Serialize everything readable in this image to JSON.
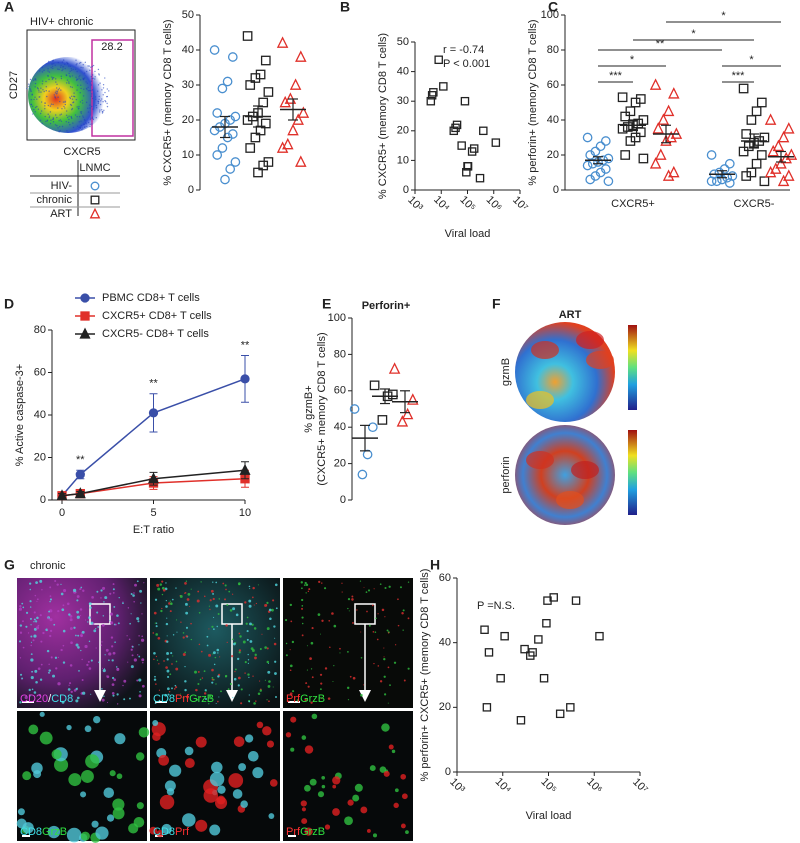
{
  "panel_labels": [
    "A",
    "B",
    "C",
    "D",
    "E",
    "F",
    "G",
    "H"
  ],
  "flow": {
    "title": "HIV+ chronic",
    "ylabel": "CD27",
    "xlabel": "CXCR5",
    "gate": "28.2"
  },
  "legend_table": {
    "header": "LNMC"
  },
  "heatmaps": {
    "title": "ART",
    "labels": [
      "gzmB",
      "perforin"
    ]
  },
  "micrographs": {
    "title": "chronic",
    "captions": [
      [
        {
          "text": "CD20",
          "color": "#e040e0"
        },
        {
          "text": "/",
          "color": "#ffffff"
        },
        {
          "text": "CD8",
          "color": "#40e0e8"
        }
      ],
      [
        {
          "text": "CD8",
          "color": "#40e0e8"
        },
        {
          "text": "Prf",
          "color": "#ff3030"
        },
        {
          "text": "GrzB",
          "color": "#30e040"
        }
      ],
      [
        {
          "text": "Prf",
          "color": "#ff3030"
        },
        {
          "text": "GrzB",
          "color": "#30e040"
        }
      ],
      [
        {
          "text": "CD8",
          "color": "#40e0e8"
        },
        {
          "text": "GrzB",
          "color": "#30e040"
        }
      ],
      [
        {
          "text": "CD8",
          "color": "#40e0e8"
        },
        {
          "text": "Prf",
          "color": "#ff3030"
        }
      ],
      [
        {
          "text": "Prf",
          "color": "#ff3030"
        },
        {
          "text": "GrzB",
          "color": "#30e040"
        }
      ]
    ]
  },
  "chart_data": [
    {
      "type": "dot",
      "ylabel": "% CXCR5+ (memory CD8 T cells)",
      "ylim": [
        0,
        50
      ],
      "yticks": [
        0,
        10,
        20,
        30,
        40,
        50
      ],
      "series": [
        {
          "name": "HIV-",
          "color": "#4a8fcf",
          "marker": "circle",
          "values": [
            40,
            38,
            31,
            29,
            22,
            21,
            20,
            19,
            18,
            17,
            16,
            15,
            12,
            10,
            8,
            6,
            3
          ],
          "mean": 18,
          "sem": 3
        },
        {
          "name": "chronic",
          "color": "#222222",
          "marker": "square",
          "values": [
            44,
            37,
            33,
            32,
            30,
            28,
            25,
            22,
            21,
            20,
            19,
            17,
            15,
            12,
            8,
            7,
            5
          ],
          "mean": 21,
          "sem": 3
        },
        {
          "name": "ART",
          "color": "#e0302a",
          "marker": "triangle",
          "values": [
            42,
            38,
            30,
            26,
            25,
            22,
            20,
            17,
            13,
            12,
            8
          ],
          "mean": 23,
          "sem": 3
        }
      ]
    },
    {
      "type": "scatter",
      "xlabel": "Viral load",
      "ylabel": "% CXCR5+ (memory CD8 T cells)",
      "xscale": "log",
      "xlim": [
        1000,
        10000000
      ],
      "xticks": [
        {
          "value": 1000,
          "label": "10³"
        },
        {
          "value": 10000,
          "label": "10⁴"
        },
        {
          "value": 100000,
          "label": "10⁵"
        },
        {
          "value": 1000000,
          "label": "10⁶"
        },
        {
          "value": 10000000,
          "label": "10⁷"
        }
      ],
      "ylim": [
        0,
        50
      ],
      "yticks": [
        0,
        10,
        20,
        30,
        40,
        50
      ],
      "annotations": [
        "r = -0.74",
        "P < 0.001"
      ],
      "color": "#222222",
      "marker": "square",
      "x": [
        4000,
        4500,
        5000,
        8000,
        12000,
        30000,
        35000,
        40000,
        60000,
        80000,
        90000,
        100000,
        105000,
        150000,
        180000,
        300000,
        400000,
        1200000
      ],
      "values": [
        30,
        32,
        33,
        44,
        35,
        20,
        21,
        22,
        15,
        30,
        6,
        8,
        8,
        13,
        14,
        4,
        20,
        16
      ]
    },
    {
      "type": "grouped-dot",
      "ylabel": "% perforin+ (memory CD8 T cells)",
      "ylim": [
        0,
        100
      ],
      "yticks": [
        0,
        20,
        40,
        60,
        80,
        100
      ],
      "categories": [
        "CXCR5+",
        "CXCR5-"
      ],
      "annotations": [
        "*",
        "*",
        "**",
        "*",
        "***",
        "***",
        "*"
      ],
      "series": [
        {
          "name": "HIV-",
          "color": "#4a8fcf",
          "marker": "circle",
          "values": [
            [
              30,
              28,
              25,
              22,
              20,
              18,
              17,
              16,
              15,
              14,
              12,
              10,
              8,
              6,
              5
            ],
            [
              20,
              15,
              12,
              10,
              9,
              8,
              7,
              6,
              5,
              5,
              4
            ]
          ],
          "means": [
            17,
            9
          ],
          "sem": [
            2,
            2
          ]
        },
        {
          "name": "chronic",
          "color": "#222222",
          "marker": "square",
          "values": [
            [
              53,
              52,
              50,
              45,
              42,
              40,
              38,
              37,
              36,
              35,
              33,
              30,
              28,
              20,
              18
            ],
            [
              58,
              50,
              45,
              40,
              32,
              30,
              28,
              27,
              25,
              22,
              20,
              15,
              10,
              8,
              5
            ]
          ],
          "means": [
            37,
            28
          ],
          "sem": [
            3,
            4
          ]
        },
        {
          "name": "ART",
          "color": "#e0302a",
          "marker": "triangle",
          "values": [
            [
              60,
              55,
              45,
              40,
              35,
              32,
              30,
              28,
              20,
              15,
              10,
              8
            ],
            [
              40,
              35,
              30,
              25,
              22,
              20,
              18,
              15,
              12,
              10,
              8,
              5
            ]
          ],
          "means": [
            32,
            19
          ],
          "sem": [
            5,
            3
          ]
        }
      ]
    },
    {
      "type": "line",
      "xlabel": "E:T ratio",
      "ylabel": "% Active caspase-3+",
      "xlim": [
        0,
        10
      ],
      "xticks": [
        0,
        5,
        10
      ],
      "ylim": [
        0,
        80
      ],
      "yticks": [
        0,
        20,
        40,
        60,
        80
      ],
      "x": [
        0,
        1,
        5,
        10
      ],
      "filled": true,
      "annotations": [
        "**",
        "**",
        "**"
      ],
      "series": [
        {
          "name": "PBMC CD8+ T cells",
          "color": "#3a4fa8",
          "marker": "circle",
          "values": [
            2,
            12,
            41,
            57
          ],
          "errors": [
            1,
            2,
            9,
            11
          ]
        },
        {
          "name": "CXCR5+ CD8+ T cells",
          "color": "#e0302a",
          "marker": "square",
          "values": [
            2,
            3,
            8,
            10
          ],
          "errors": [
            1,
            1,
            3,
            4
          ]
        },
        {
          "name": "CXCR5- CD8+ T cells",
          "color": "#222222",
          "marker": "triangle",
          "values": [
            2,
            3,
            10,
            14
          ],
          "errors": [
            1,
            1,
            3,
            4
          ]
        }
      ]
    },
    {
      "type": "dot",
      "title": "Perforin+",
      "ylabel": [
        "% gzmB+",
        "(CXCR5+ memory CD8 T cells)"
      ],
      "ylim": [
        0,
        100
      ],
      "yticks": [
        0,
        20,
        40,
        60,
        80,
        100
      ],
      "series": [
        {
          "color": "#4a8fcf",
          "marker": "circle",
          "values": [
            50,
            40,
            25,
            14
          ],
          "mean": 34,
          "sem": 7
        },
        {
          "color": "#222222",
          "marker": "square",
          "values": [
            63,
            58,
            57,
            44
          ],
          "mean": 57,
          "sem": 4
        },
        {
          "color": "#e0302a",
          "marker": "triangle",
          "values": [
            72,
            55,
            47,
            43
          ],
          "mean": 54,
          "sem": 6
        }
      ]
    },
    {
      "type": "scatter",
      "xlabel": "Viral load",
      "ylabel": "% perforin+ CXCR5+ (memory CD8 T cells)",
      "xscale": "log",
      "xlim": [
        1000,
        10000000
      ],
      "xticks": [
        {
          "value": 1000,
          "label": "10³"
        },
        {
          "value": 10000,
          "label": "10⁴"
        },
        {
          "value": 100000,
          "label": "10⁵"
        },
        {
          "value": 1000000,
          "label": "10⁶"
        },
        {
          "value": 10000000,
          "label": "10⁷"
        }
      ],
      "ylim": [
        0,
        60
      ],
      "yticks": [
        0,
        20,
        40,
        60
      ],
      "annotations": [
        "P =N.S."
      ],
      "color": "#222222",
      "marker": "square",
      "x": [
        4000,
        4500,
        5000,
        9000,
        11000,
        25000,
        30000,
        40000,
        45000,
        60000,
        80000,
        90000,
        95000,
        130000,
        180000,
        300000,
        400000,
        1300000
      ],
      "values": [
        44,
        20,
        37,
        29,
        42,
        16,
        38,
        36,
        37,
        41,
        29,
        46,
        53,
        54,
        18,
        20,
        53,
        42
      ]
    }
  ]
}
